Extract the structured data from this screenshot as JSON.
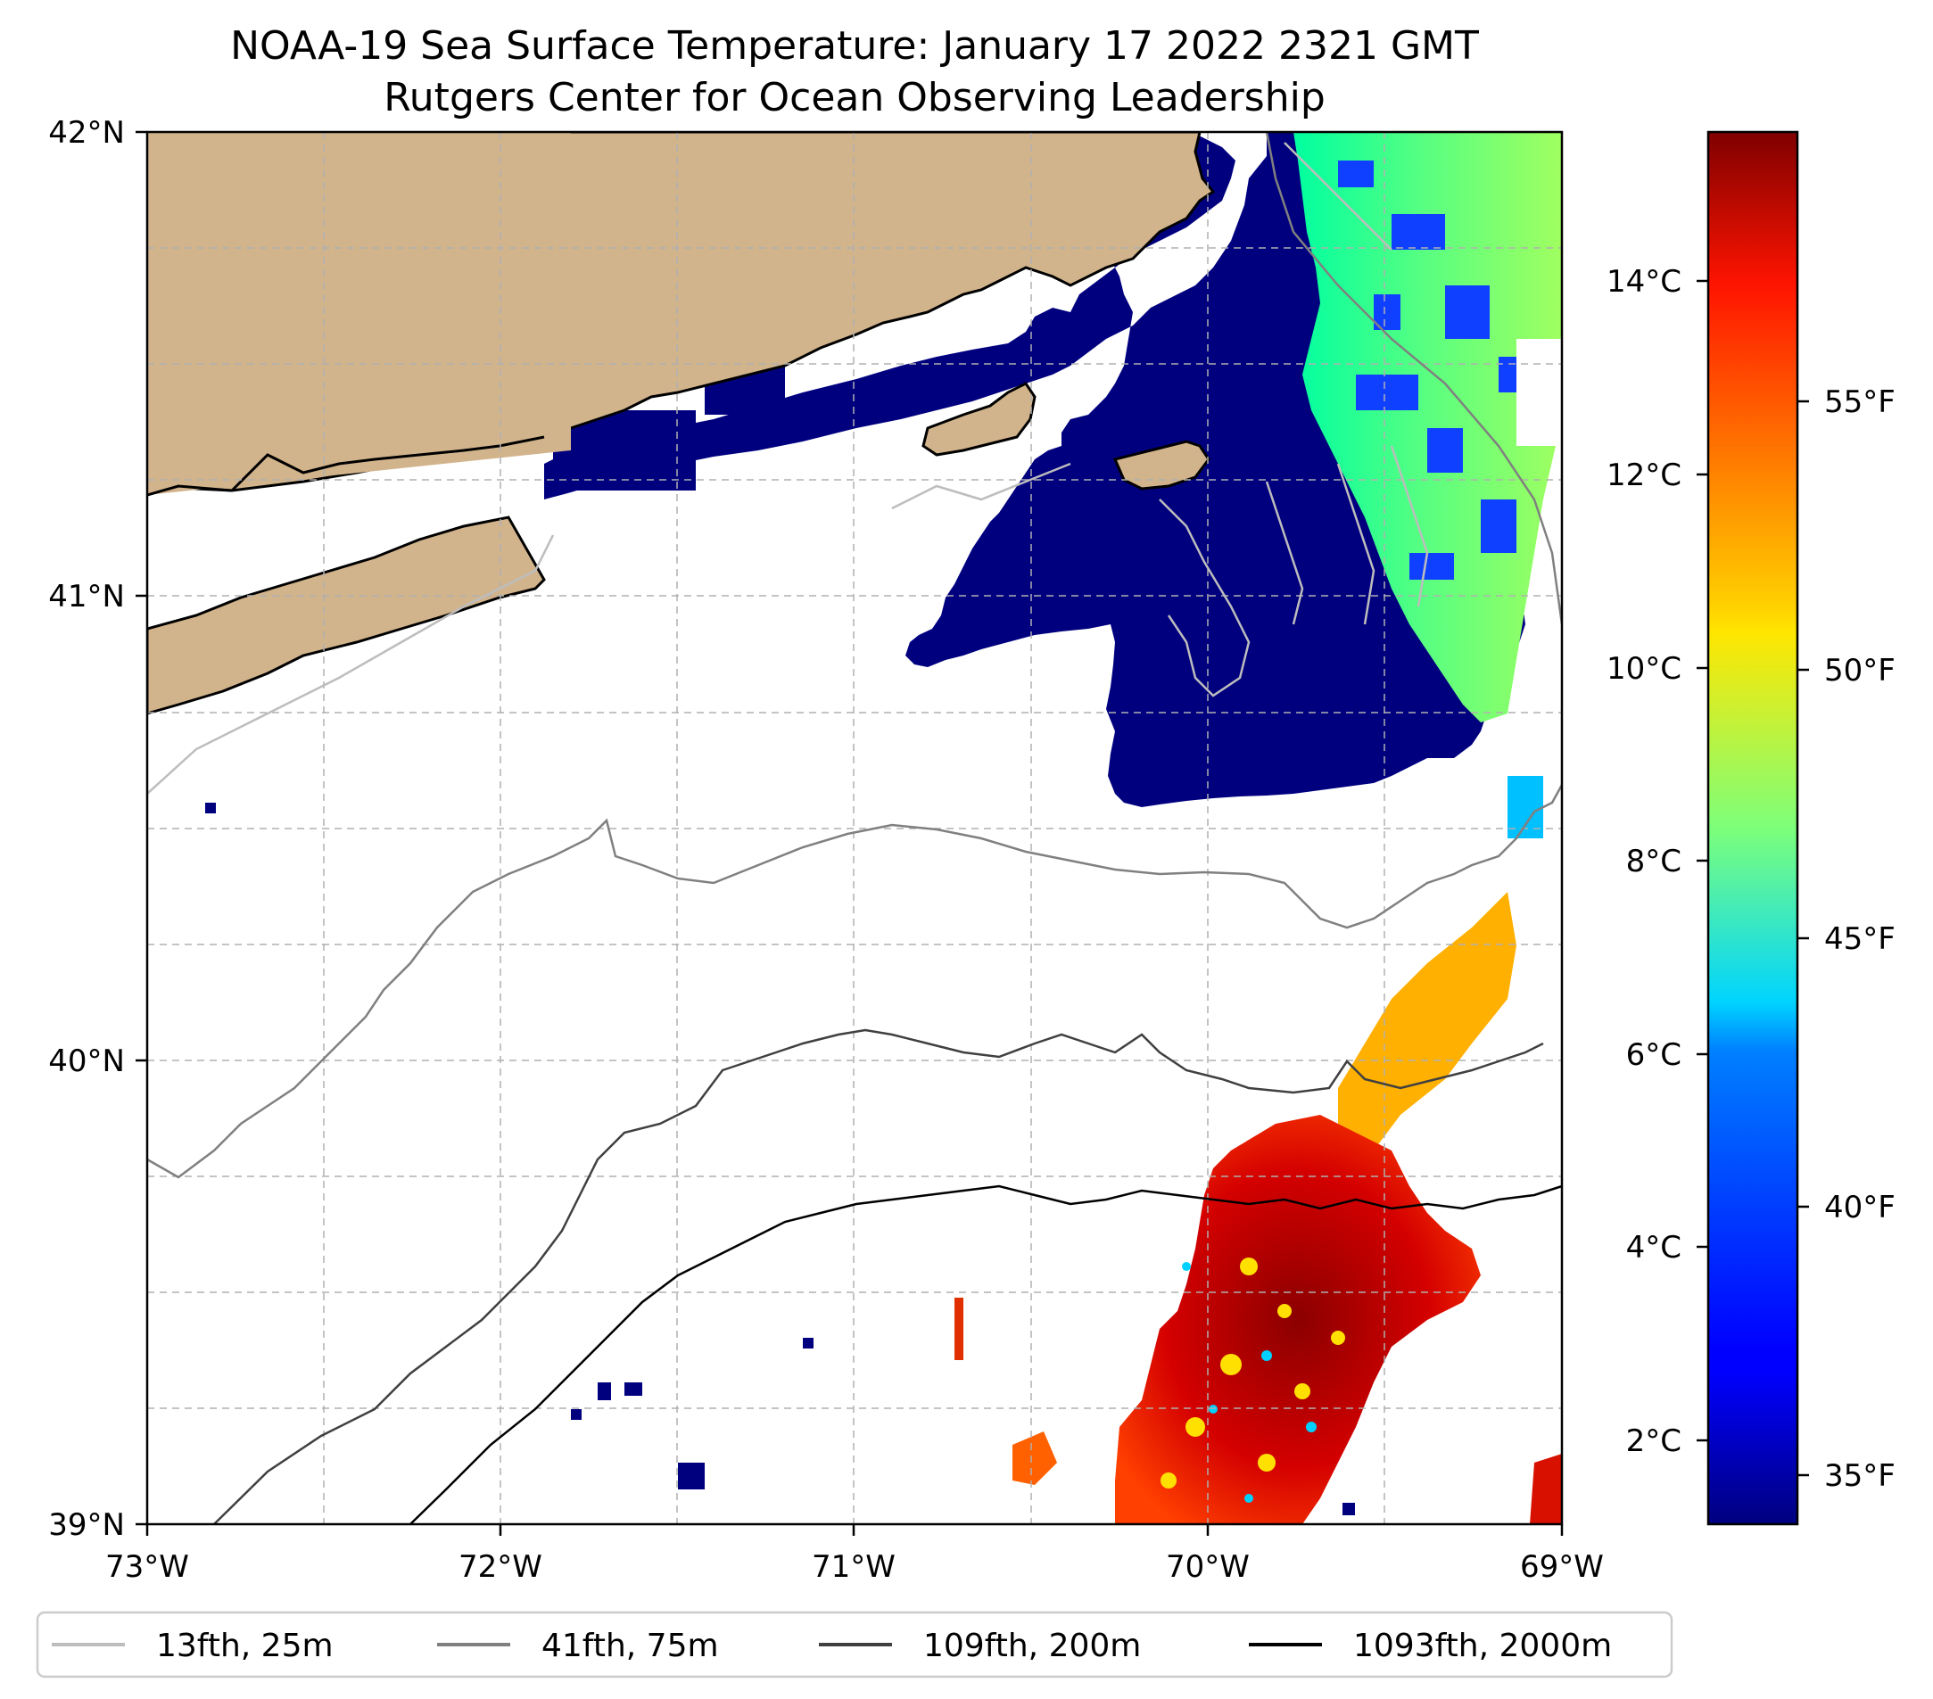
{
  "title": {
    "line1": "NOAA-19 Sea Surface Temperature: January 17 2022 2321 GMT",
    "line2": "Rutgers Center for Ocean Observing Leadership"
  },
  "map": {
    "lon_range": [
      -73,
      -69
    ],
    "lat_range": [
      39,
      42
    ],
    "lon_labels": [
      "73°W",
      "72°W",
      "71°W",
      "70°W",
      "69°W"
    ],
    "lat_labels": [
      "39°N",
      "40°N",
      "41°N",
      "42°N"
    ],
    "land_color": "#d2b48c",
    "no_data_color": "#ffffff",
    "gridlines": "dashed"
  },
  "colorbar": {
    "colormap": "jet",
    "celsius_labels": [
      "2°C",
      "4°C",
      "6°C",
      "8°C",
      "10°C",
      "12°C",
      "14°C"
    ],
    "fahrenheit_labels": [
      "35°F",
      "40°F",
      "45°F",
      "50°F",
      "55°F"
    ]
  },
  "legend": {
    "items": [
      {
        "label": "13fth, 25m",
        "color": "#bdbdbd"
      },
      {
        "label": "41fth, 75m",
        "color": "#808080"
      },
      {
        "label": "109fth, 200m",
        "color": "#404040"
      },
      {
        "label": "1093fth, 2000m",
        "color": "#000000"
      }
    ]
  }
}
